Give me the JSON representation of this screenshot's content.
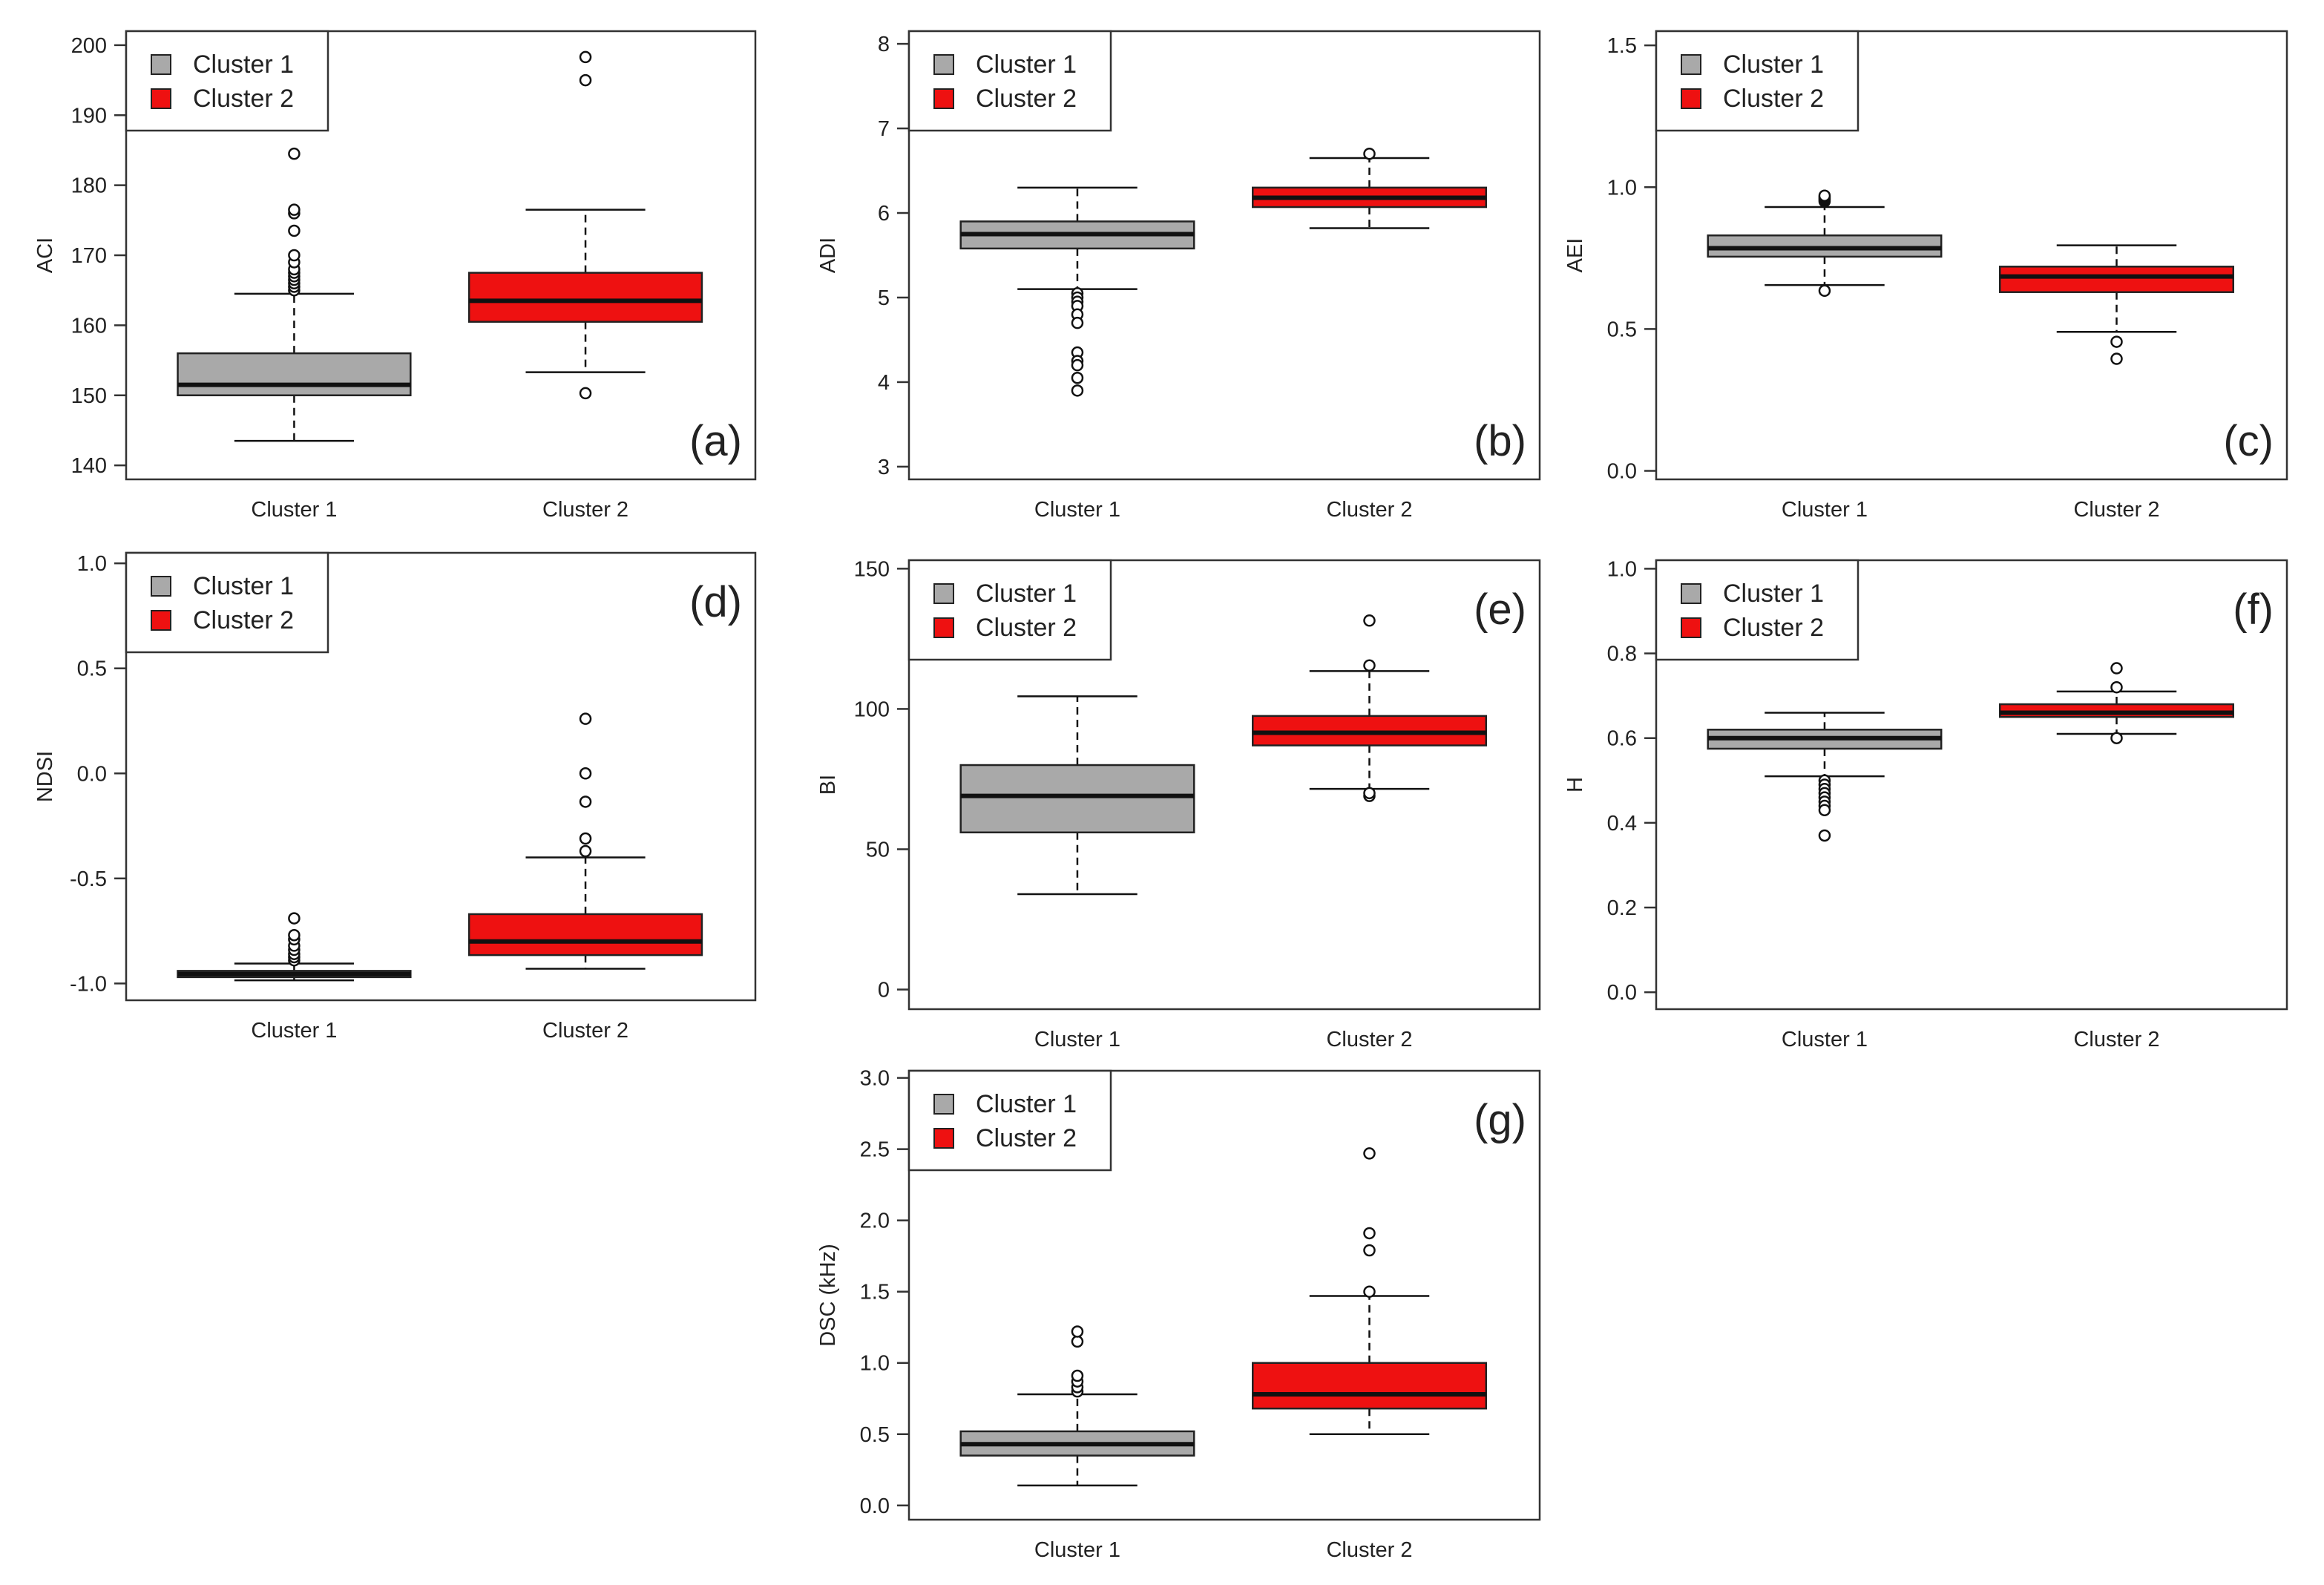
{
  "colors": {
    "cluster1": "#a9a9a9",
    "cluster2": "#ee1111",
    "axis": "#333333",
    "box_stroke": "#222222",
    "median": "#111111"
  },
  "chart_data": [
    {
      "panel": "(a)",
      "type": "box",
      "ylabel": "ACI",
      "ylim": [
        138,
        202
      ],
      "yticks": [
        140,
        150,
        160,
        170,
        180,
        190,
        200
      ],
      "ytick_labels": [
        "140",
        "150",
        "160",
        "170",
        "180",
        "190",
        "200"
      ],
      "categories": [
        "Cluster 1",
        "Cluster 2"
      ],
      "legend": [
        "Cluster 1",
        "Cluster 2"
      ],
      "legend_position": "top-left",
      "label_position": "bottom-right",
      "series": [
        {
          "name": "Cluster 1",
          "whisker_low": 143.5,
          "q1": 150,
          "median": 151.5,
          "q3": 156,
          "whisker_high": 164.5,
          "outliers": [
            165,
            165.5,
            166,
            166.5,
            167,
            167.5,
            168,
            169,
            170,
            173.5,
            176,
            176.5,
            184.5
          ]
        },
        {
          "name": "Cluster 2",
          "whisker_low": 153.3,
          "q1": 160.5,
          "median": 163.5,
          "q3": 167.5,
          "whisker_high": 176.5,
          "outliers": [
            150.3,
            195,
            198.3
          ]
        }
      ]
    },
    {
      "panel": "(b)",
      "type": "box",
      "ylabel": "ADI",
      "ylim": [
        2.85,
        8.15
      ],
      "yticks": [
        3,
        4,
        5,
        6,
        7,
        8
      ],
      "ytick_labels": [
        "3",
        "4",
        "5",
        "6",
        "7",
        "8"
      ],
      "categories": [
        "Cluster 1",
        "Cluster 2"
      ],
      "legend": [
        "Cluster 1",
        "Cluster 2"
      ],
      "legend_position": "top-left",
      "label_position": "bottom-right",
      "series": [
        {
          "name": "Cluster 1",
          "whisker_low": 5.1,
          "q1": 5.58,
          "median": 5.75,
          "q3": 5.9,
          "whisker_high": 6.3,
          "outliers": [
            5.05,
            5.0,
            4.95,
            4.9,
            4.8,
            4.7,
            4.35,
            4.25,
            4.2,
            4.05,
            3.9
          ]
        },
        {
          "name": "Cluster 2",
          "whisker_low": 5.82,
          "q1": 6.07,
          "median": 6.18,
          "q3": 6.3,
          "whisker_high": 6.65,
          "outliers": [
            6.7
          ]
        }
      ]
    },
    {
      "panel": "(c)",
      "type": "box",
      "ylabel": "AEI",
      "ylim": [
        -0.03,
        1.55
      ],
      "yticks": [
        0.0,
        0.5,
        1.0,
        1.5
      ],
      "ytick_labels": [
        "0.0",
        "0.5",
        "1.0",
        "1.5"
      ],
      "categories": [
        "Cluster 1",
        "Cluster 2"
      ],
      "legend": [
        "Cluster 1",
        "Cluster 2"
      ],
      "legend_position": "top-left",
      "label_position": "bottom-right",
      "series": [
        {
          "name": "Cluster 1",
          "whisker_low": 0.655,
          "q1": 0.755,
          "median": 0.785,
          "q3": 0.83,
          "whisker_high": 0.93,
          "outliers": [
            0.635,
            0.95,
            0.955,
            0.96,
            0.965,
            0.97
          ]
        },
        {
          "name": "Cluster 2",
          "whisker_low": 0.49,
          "q1": 0.63,
          "median": 0.685,
          "q3": 0.72,
          "whisker_high": 0.795,
          "outliers": [
            0.455,
            0.395
          ]
        }
      ]
    },
    {
      "panel": "(d)",
      "type": "box",
      "ylabel": "NDSI",
      "ylim": [
        -1.08,
        1.05
      ],
      "yticks": [
        -1.0,
        -0.5,
        0.0,
        0.5,
        1.0
      ],
      "ytick_labels": [
        "-1.0",
        "-0.5",
        "0.0",
        "0.5",
        "1.0"
      ],
      "categories": [
        "Cluster 1",
        "Cluster 2"
      ],
      "legend": [
        "Cluster 1",
        "Cluster 2"
      ],
      "legend_position": "top-left",
      "label_position": "top-right",
      "series": [
        {
          "name": "Cluster 1",
          "whisker_low": -0.985,
          "q1": -0.97,
          "median": -0.955,
          "q3": -0.94,
          "whisker_high": -0.905,
          "outliers": [
            -0.89,
            -0.875,
            -0.86,
            -0.84,
            -0.82,
            -0.79,
            -0.77,
            -0.69
          ]
        },
        {
          "name": "Cluster 2",
          "whisker_low": -0.93,
          "q1": -0.865,
          "median": -0.8,
          "q3": -0.67,
          "whisker_high": -0.4,
          "outliers": [
            -0.37,
            -0.31,
            -0.135,
            0.0,
            0.26
          ]
        }
      ]
    },
    {
      "panel": "(e)",
      "type": "box",
      "ylabel": "BI",
      "ylim": [
        -7,
        153
      ],
      "yticks": [
        0,
        50,
        100,
        150
      ],
      "ytick_labels": [
        "0",
        "50",
        "100",
        "150"
      ],
      "categories": [
        "Cluster 1",
        "Cluster 2"
      ],
      "legend": [
        "Cluster 1",
        "Cluster 2"
      ],
      "legend_position": "top-left",
      "label_position": "top-right",
      "series": [
        {
          "name": "Cluster 1",
          "whisker_low": 34,
          "q1": 56,
          "median": 69,
          "q3": 80,
          "whisker_high": 104.5,
          "outliers": []
        },
        {
          "name": "Cluster 2",
          "whisker_low": 71.5,
          "q1": 87,
          "median": 91.5,
          "q3": 97.5,
          "whisker_high": 113.5,
          "outliers": [
            69,
            70,
            115.5,
            131.5
          ]
        }
      ]
    },
    {
      "panel": "(f)",
      "type": "box",
      "ylabel": "H",
      "ylim": [
        -0.04,
        1.02
      ],
      "yticks": [
        0.0,
        0.2,
        0.4,
        0.6,
        0.8,
        1.0
      ],
      "ytick_labels": [
        "0.0",
        "0.2",
        "0.4",
        "0.6",
        "0.8",
        "1.0"
      ],
      "categories": [
        "Cluster 1",
        "Cluster 2"
      ],
      "legend": [
        "Cluster 1",
        "Cluster 2"
      ],
      "legend_position": "top-left",
      "label_position": "top-right",
      "series": [
        {
          "name": "Cluster 1",
          "whisker_low": 0.51,
          "q1": 0.575,
          "median": 0.6,
          "q3": 0.62,
          "whisker_high": 0.66,
          "outliers": [
            0.5,
            0.49,
            0.48,
            0.47,
            0.46,
            0.45,
            0.44,
            0.43,
            0.37
          ]
        },
        {
          "name": "Cluster 2",
          "whisker_low": 0.61,
          "q1": 0.65,
          "median": 0.66,
          "q3": 0.68,
          "whisker_high": 0.71,
          "outliers": [
            0.6,
            0.72,
            0.765
          ]
        }
      ]
    },
    {
      "panel": "(g)",
      "type": "box",
      "ylabel": "DSC (kHz)",
      "ylim": [
        -0.1,
        3.05
      ],
      "yticks": [
        0.0,
        0.5,
        1.0,
        1.5,
        2.0,
        2.5,
        3.0
      ],
      "ytick_labels": [
        "0.0",
        "0.5",
        "1.0",
        "1.5",
        "2.0",
        "2.5",
        "3.0"
      ],
      "categories": [
        "Cluster 1",
        "Cluster 2"
      ],
      "legend": [
        "Cluster 1",
        "Cluster 2"
      ],
      "legend_position": "top-left",
      "label_position": "top-right",
      "series": [
        {
          "name": "Cluster 1",
          "whisker_low": 0.14,
          "q1": 0.35,
          "median": 0.43,
          "q3": 0.52,
          "whisker_high": 0.78,
          "outliers": [
            0.8,
            0.83,
            0.87,
            0.91,
            1.15,
            1.22
          ]
        },
        {
          "name": "Cluster 2",
          "whisker_low": 0.5,
          "q1": 0.68,
          "median": 0.78,
          "q3": 1.0,
          "whisker_high": 1.47,
          "outliers": [
            1.5,
            1.79,
            1.91,
            2.47
          ]
        }
      ]
    }
  ]
}
